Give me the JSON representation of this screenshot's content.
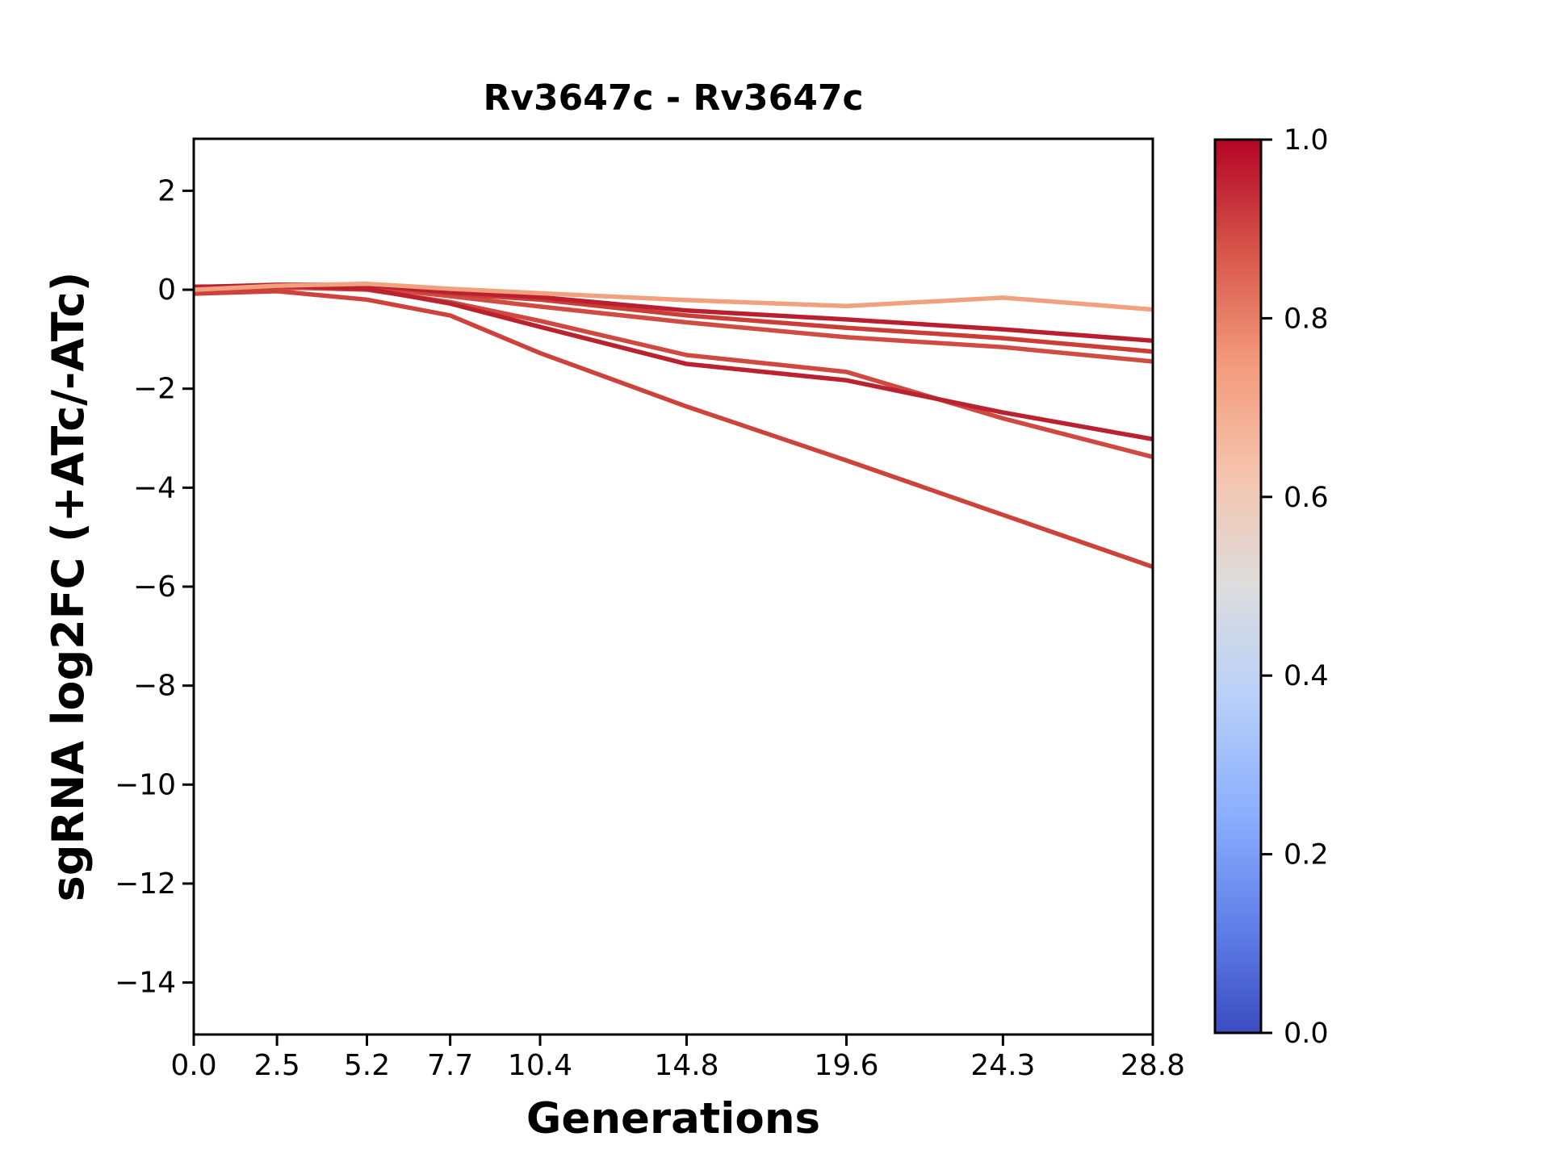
{
  "figure": {
    "background": "#ffffff",
    "title": "Rv3647c - Rv3647c",
    "xlabel": "Generations",
    "ylabel": "sgRNA log2FC (+ATc/-ATc)"
  },
  "chart_data": {
    "type": "line",
    "title": "Rv3647c - Rv3647c",
    "xlabel": "Generations",
    "ylabel": "sgRNA log2FC (+ATc/-ATc)",
    "grid": false,
    "x": [
      0.0,
      2.5,
      5.2,
      7.7,
      10.4,
      14.8,
      19.6,
      24.3,
      28.8
    ],
    "x_tick_labels": [
      "0.0",
      "2.5",
      "5.2",
      "7.7",
      "10.4",
      "14.8",
      "19.6",
      "24.3",
      "28.8"
    ],
    "xlim": [
      0,
      28.8
    ],
    "y_ticks": [
      2,
      0,
      -2,
      -4,
      -6,
      -8,
      -10,
      -12,
      -14
    ],
    "y_tick_labels": [
      "2",
      "0",
      "−2",
      "−4",
      "−6",
      "−8",
      "−10",
      "−12",
      "−14"
    ],
    "ylim": [
      -15.05,
      3.05
    ],
    "line_width": 5.5,
    "series": [
      {
        "name": "line-4",
        "colormap_value": 0.86,
        "color": "#d04b41",
        "values": [
          -0.02,
          0.03,
          0.05,
          -0.13,
          -0.34,
          -0.66,
          -0.96,
          -1.16,
          -1.45
        ]
      },
      {
        "name": "line-6",
        "colormap_value": 0.87,
        "color": "#cf4940",
        "values": [
          0.03,
          0.05,
          0.0,
          -0.25,
          -0.63,
          -1.32,
          -1.66,
          -2.6,
          -3.38
        ]
      },
      {
        "name": "line-3",
        "colormap_value": 0.89,
        "color": "#cb3e36",
        "values": [
          0.02,
          0.06,
          0.08,
          -0.08,
          -0.2,
          -0.52,
          -0.77,
          -0.98,
          -1.25
        ]
      },
      {
        "name": "line-7",
        "colormap_value": 0.88,
        "color": "#cd433c",
        "values": [
          -0.08,
          -0.03,
          -0.2,
          -0.52,
          -1.28,
          -2.36,
          -3.45,
          -4.55,
          -5.6
        ]
      },
      {
        "name": "line-5",
        "colormap_value": 0.95,
        "color": "#bb222f",
        "values": [
          0.06,
          0.08,
          0.02,
          -0.28,
          -0.75,
          -1.5,
          -1.83,
          -2.48,
          -3.02
        ]
      },
      {
        "name": "line-2",
        "colormap_value": 0.96,
        "color": "#b91f2e",
        "values": [
          0.05,
          0.1,
          0.1,
          -0.05,
          -0.15,
          -0.42,
          -0.6,
          -0.8,
          -1.03
        ]
      },
      {
        "name": "line-1",
        "colormap_value": 0.65,
        "color": "#f2a17e",
        "values": [
          0.0,
          0.08,
          0.12,
          0.02,
          -0.07,
          -0.21,
          -0.33,
          -0.16,
          -0.4
        ]
      }
    ],
    "colorbar": {
      "colormap": "coolwarm",
      "range": [
        0.0,
        1.0
      ],
      "ticks": [
        0.0,
        0.2,
        0.4,
        0.6,
        0.8,
        1.0
      ],
      "tick_labels": [
        "0.0",
        "0.2",
        "0.4",
        "0.6",
        "0.8",
        "1.0"
      ],
      "stops": [
        {
          "t": 0.0,
          "c": "#3b4cc0"
        },
        {
          "t": 0.125,
          "c": "#6282ea"
        },
        {
          "t": 0.25,
          "c": "#8db0fe"
        },
        {
          "t": 0.375,
          "c": "#b8d0f9"
        },
        {
          "t": 0.5,
          "c": "#dddddd"
        },
        {
          "t": 0.625,
          "c": "#f5c4ad"
        },
        {
          "t": 0.75,
          "c": "#f49a7b"
        },
        {
          "t": 0.875,
          "c": "#d6564a"
        },
        {
          "t": 1.0,
          "c": "#b40426"
        }
      ]
    },
    "axis_color": "#000000"
  }
}
